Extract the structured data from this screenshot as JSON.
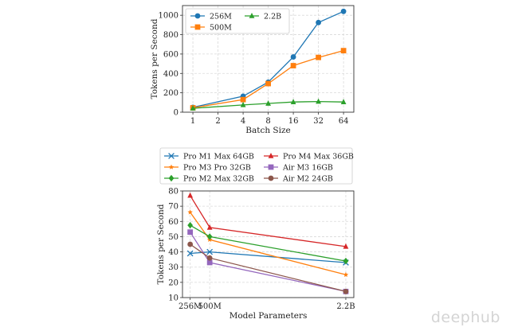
{
  "watermark": "deephub",
  "chart_data": [
    {
      "type": "line",
      "title": "",
      "xlabel": "Batch Size",
      "ylabel": "Tokens per Second",
      "x_scale": "log2",
      "x": [
        1,
        2,
        4,
        8,
        16,
        32,
        64
      ],
      "x_tick_labels": [
        "1",
        "2",
        "4",
        "8",
        "16",
        "32",
        "64"
      ],
      "ylim": [
        0,
        1100
      ],
      "y_ticks": [
        0,
        200,
        400,
        600,
        800,
        1000
      ],
      "grid": true,
      "legend_position": "top-left",
      "legend_columns": 2,
      "series": [
        {
          "name": "256M",
          "color": "#1f77b4",
          "marker": "circle",
          "points": [
            [
              1,
              50
            ],
            [
              4,
              165
            ],
            [
              8,
              310
            ],
            [
              16,
              570
            ],
            [
              32,
              925
            ],
            [
              64,
              1040
            ]
          ]
        },
        {
          "name": "500M",
          "color": "#ff7f0e",
          "marker": "square",
          "points": [
            [
              1,
              45
            ],
            [
              4,
              130
            ],
            [
              8,
              295
            ],
            [
              16,
              480
            ],
            [
              32,
              565
            ],
            [
              64,
              635
            ]
          ]
        },
        {
          "name": "2.2B",
          "color": "#2ca02c",
          "marker": "triangle",
          "points": [
            [
              1,
              40
            ],
            [
              4,
              75
            ],
            [
              8,
              90
            ],
            [
              16,
              105
            ],
            [
              32,
              110
            ],
            [
              64,
              105
            ]
          ]
        }
      ]
    },
    {
      "type": "line",
      "title": "",
      "xlabel": "Model Parameters",
      "ylabel": "Tokens per Second",
      "x": [
        256,
        500,
        2200
      ],
      "x_tick_labels": [
        "256M",
        "500M",
        "2.2B"
      ],
      "xlim": [
        160,
        2300
      ],
      "ylim": [
        10,
        80
      ],
      "y_ticks": [
        10,
        20,
        30,
        40,
        50,
        60,
        70,
        80
      ],
      "grid": true,
      "legend_position": "above",
      "legend_columns": 2,
      "series": [
        {
          "name": "Pro M1 Max 64GB",
          "color": "#1f77b4",
          "marker": "x",
          "values": [
            39,
            40,
            33
          ]
        },
        {
          "name": "Pro M4 Max 36GB",
          "color": "#d62728",
          "marker": "triangle",
          "values": [
            77,
            56,
            43.5
          ]
        },
        {
          "name": "Pro M3 Pro 32GB",
          "color": "#ff7f0e",
          "marker": "star",
          "values": [
            66,
            48,
            25
          ]
        },
        {
          "name": "Air M3 16GB",
          "color": "#9467bd",
          "marker": "square",
          "values": [
            53,
            33,
            14
          ]
        },
        {
          "name": "Pro M2 Max 32GB",
          "color": "#2ca02c",
          "marker": "diamond",
          "values": [
            57.5,
            50,
            34
          ]
        },
        {
          "name": "Air M2 24GB",
          "color": "#8c564b",
          "marker": "circle",
          "values": [
            45,
            36,
            14
          ]
        }
      ]
    }
  ]
}
